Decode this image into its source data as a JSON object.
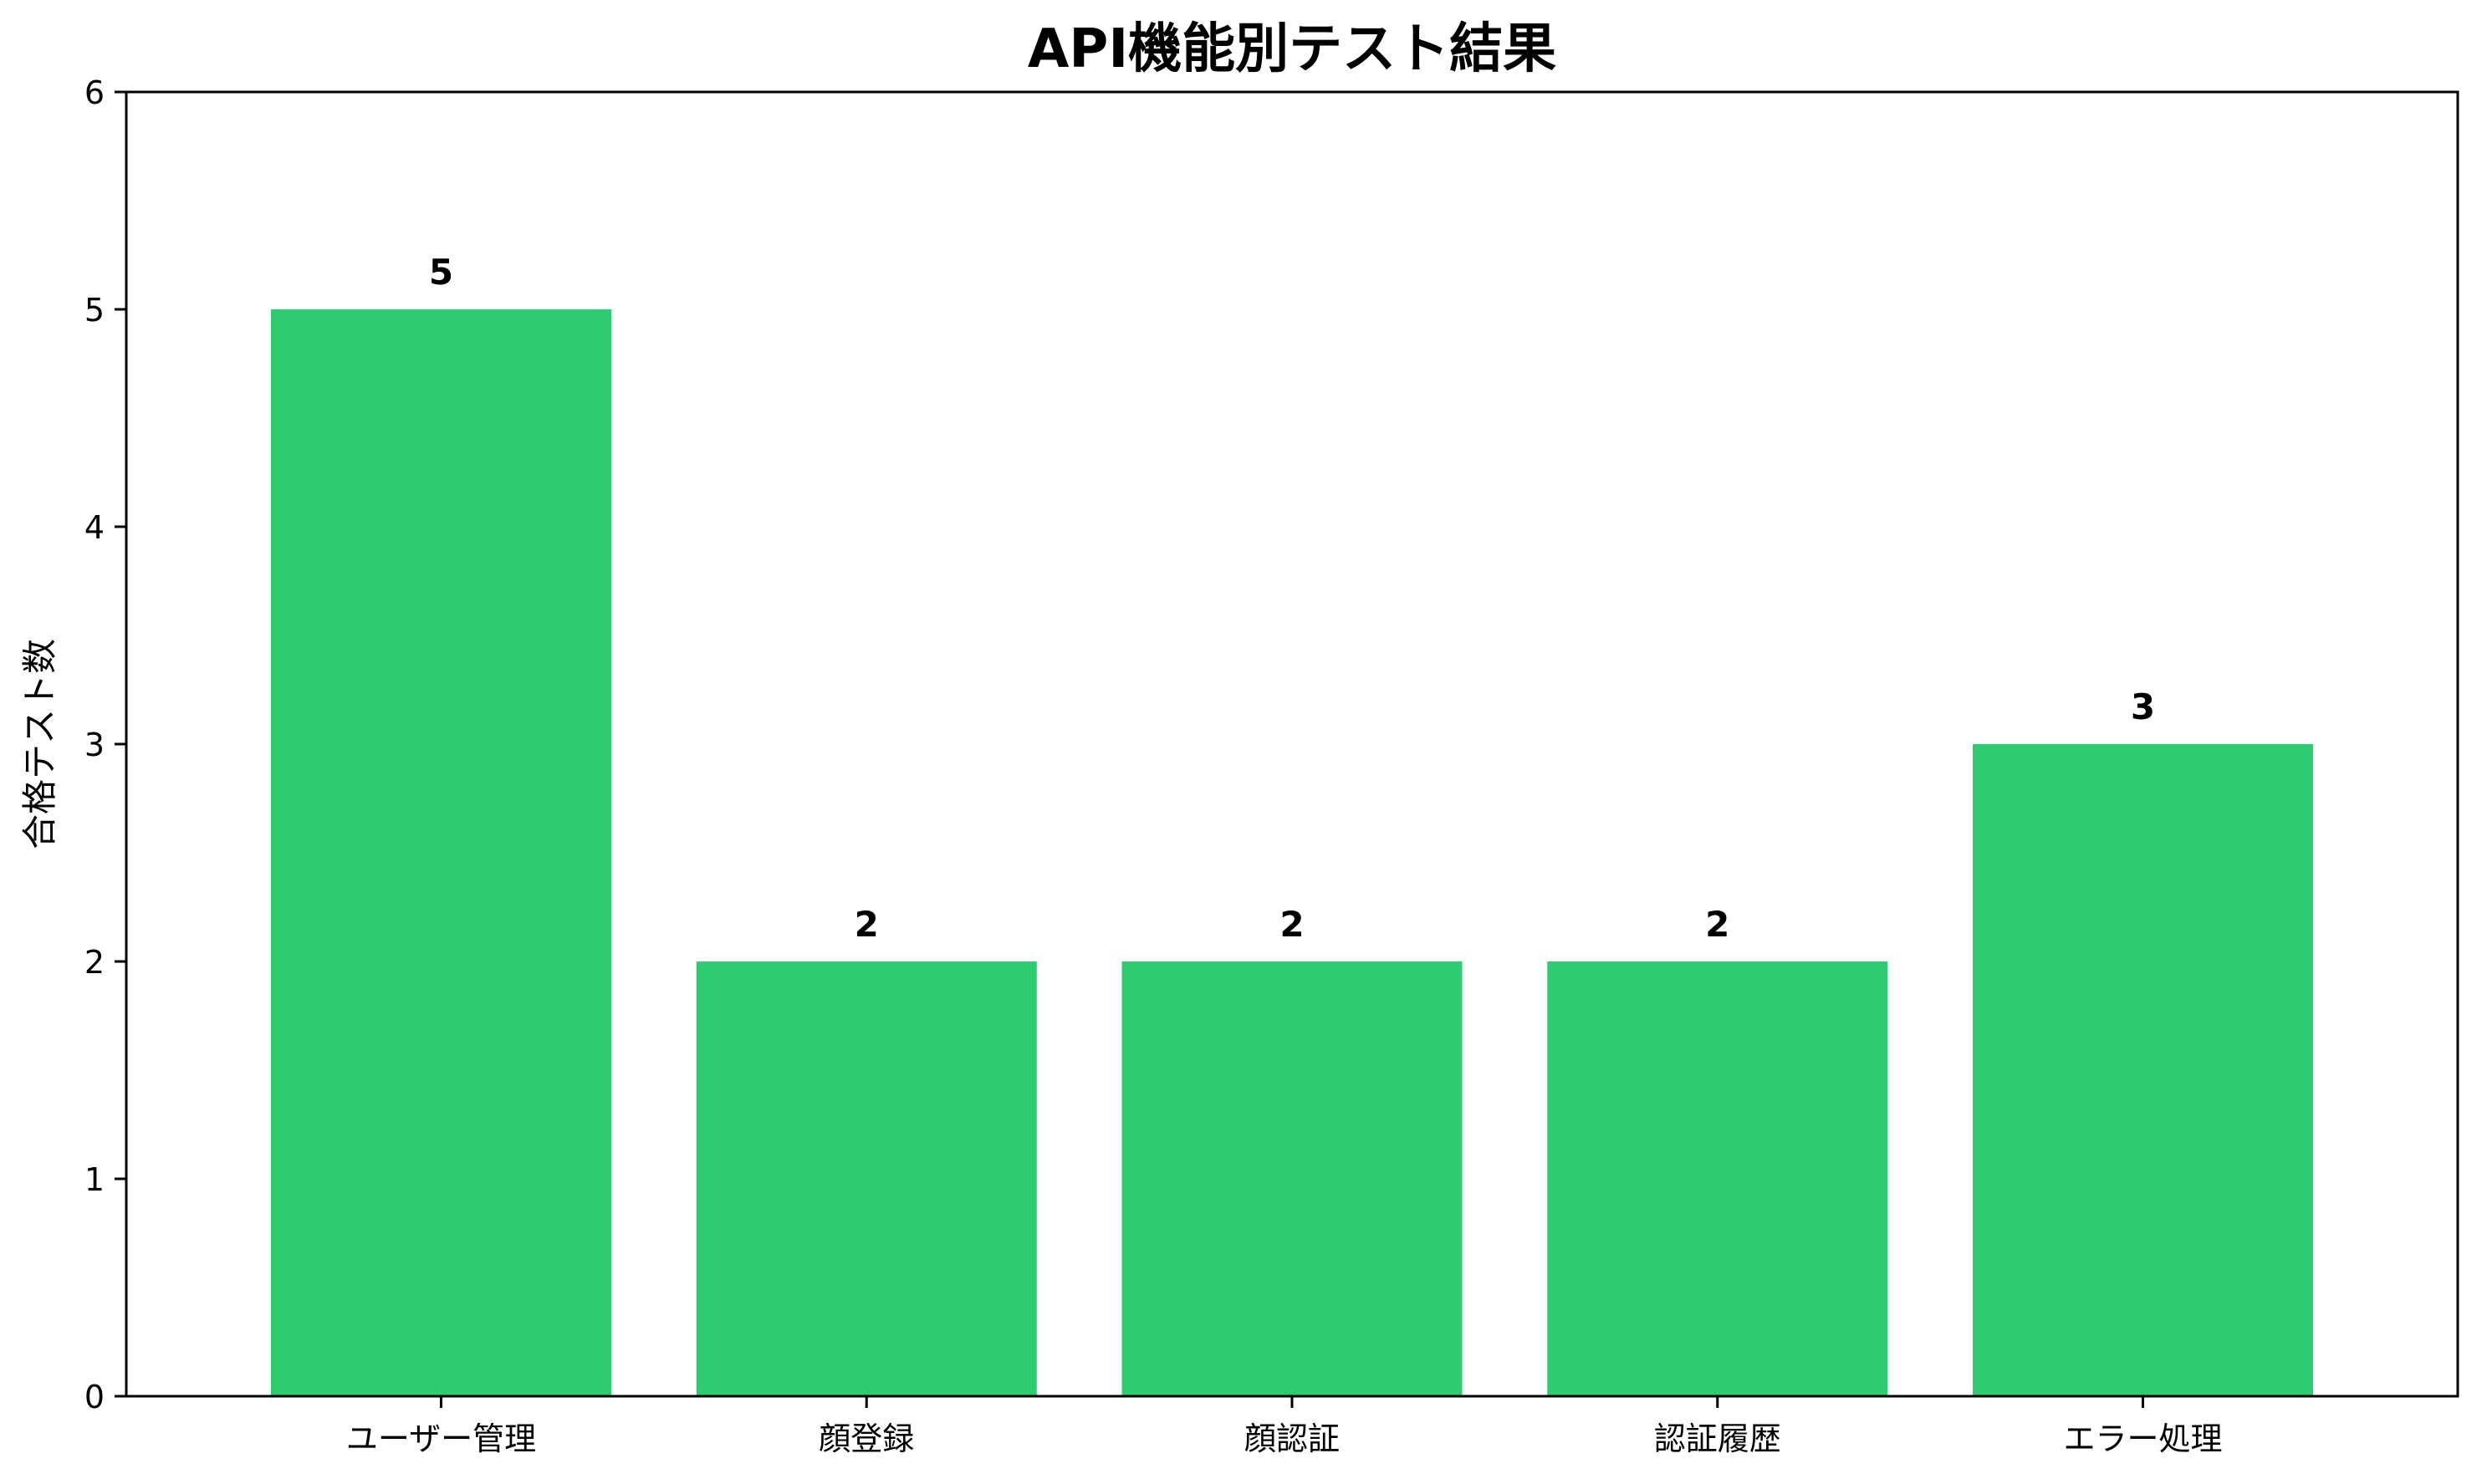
{
  "chart_data": {
    "type": "bar",
    "title": "API機能別テスト結果",
    "xlabel": "",
    "ylabel": "合格テスト数",
    "categories": [
      "ユーザー管理",
      "顔登録",
      "顔認証",
      "認証履歴",
      "エラー処理"
    ],
    "values": [
      5,
      2,
      2,
      2,
      3
    ],
    "value_labels": [
      "5",
      "2",
      "2",
      "2",
      "3"
    ],
    "ylim": [
      0,
      6
    ],
    "yticks": [
      0,
      1,
      2,
      3,
      4,
      5,
      6
    ],
    "ytick_labels": [
      "0",
      "1",
      "2",
      "3",
      "4",
      "5",
      "6"
    ],
    "bar_color": "#2ecc71",
    "grid": false,
    "legend": "none"
  }
}
